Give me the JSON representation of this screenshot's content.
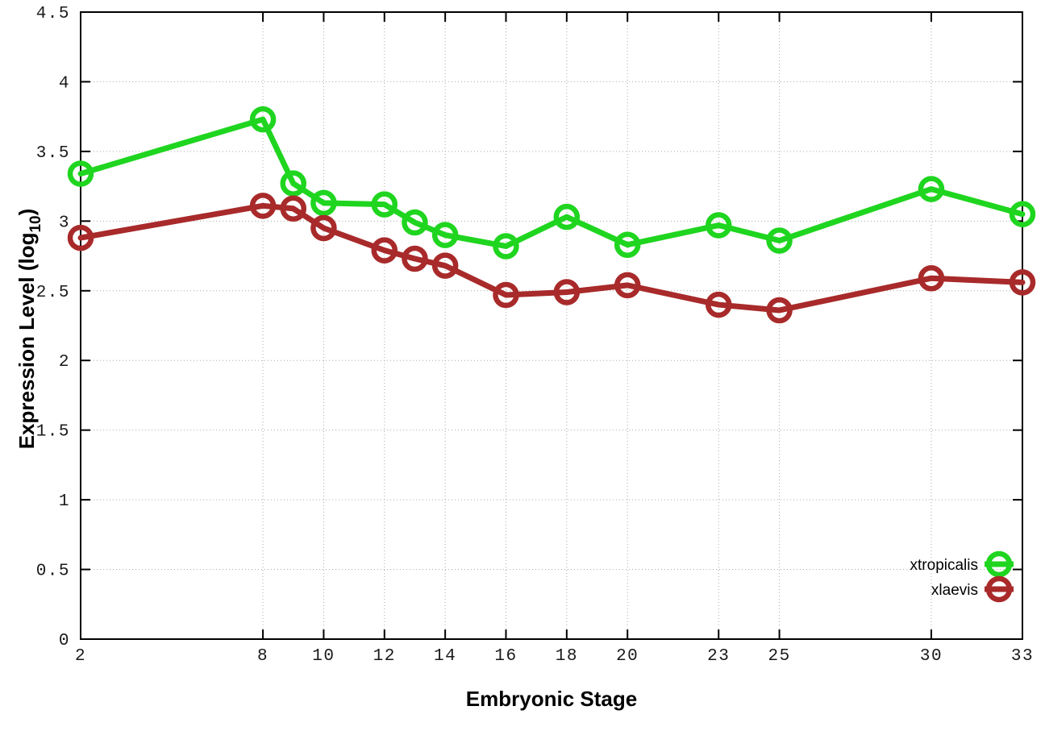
{
  "page": {
    "background": "#ffffff"
  },
  "chart_data": {
    "type": "line",
    "title": "",
    "xlabel": "Embryonic Stage",
    "ylabel": {
      "text": "Expression Level (log",
      "subscript": "10",
      "suffix": ")"
    },
    "xlim": [
      2,
      33
    ],
    "ylim": [
      0,
      4.5
    ],
    "xticks": [
      2,
      8,
      10,
      12,
      14,
      16,
      18,
      20,
      23,
      25,
      30,
      33
    ],
    "yticks": [
      0,
      0.5,
      1,
      1.5,
      2,
      2.5,
      3,
      3.5,
      4,
      4.5
    ],
    "ytick_labels": [
      "0",
      "0.5",
      "1",
      "1.5",
      "2",
      "2.5",
      "3",
      "3.5",
      "4",
      "4.5"
    ],
    "grid": true,
    "legend_position": "bottom-right",
    "x": [
      2,
      8,
      9,
      10,
      12,
      13,
      14,
      16,
      18,
      20,
      23,
      25,
      30,
      33
    ],
    "series": [
      {
        "name": "xtropicalis",
        "color": "#1fd51f",
        "values": [
          3.34,
          3.73,
          3.27,
          3.13,
          3.12,
          2.99,
          2.9,
          2.82,
          3.03,
          2.83,
          2.97,
          2.86,
          3.23,
          3.05
        ]
      },
      {
        "name": "xlaevis",
        "color": "#a82a2a",
        "values": [
          2.88,
          3.11,
          3.09,
          2.95,
          2.79,
          2.73,
          2.68,
          2.47,
          2.49,
          2.54,
          2.4,
          2.36,
          2.59,
          2.56
        ]
      }
    ],
    "styles": {
      "grid_color": "#aaaaaa",
      "axis_color": "#000000",
      "tick_label_color": "#1a1a1a",
      "line_width": 7,
      "marker_radius": 13,
      "marker_stroke_width": 6.5
    }
  }
}
